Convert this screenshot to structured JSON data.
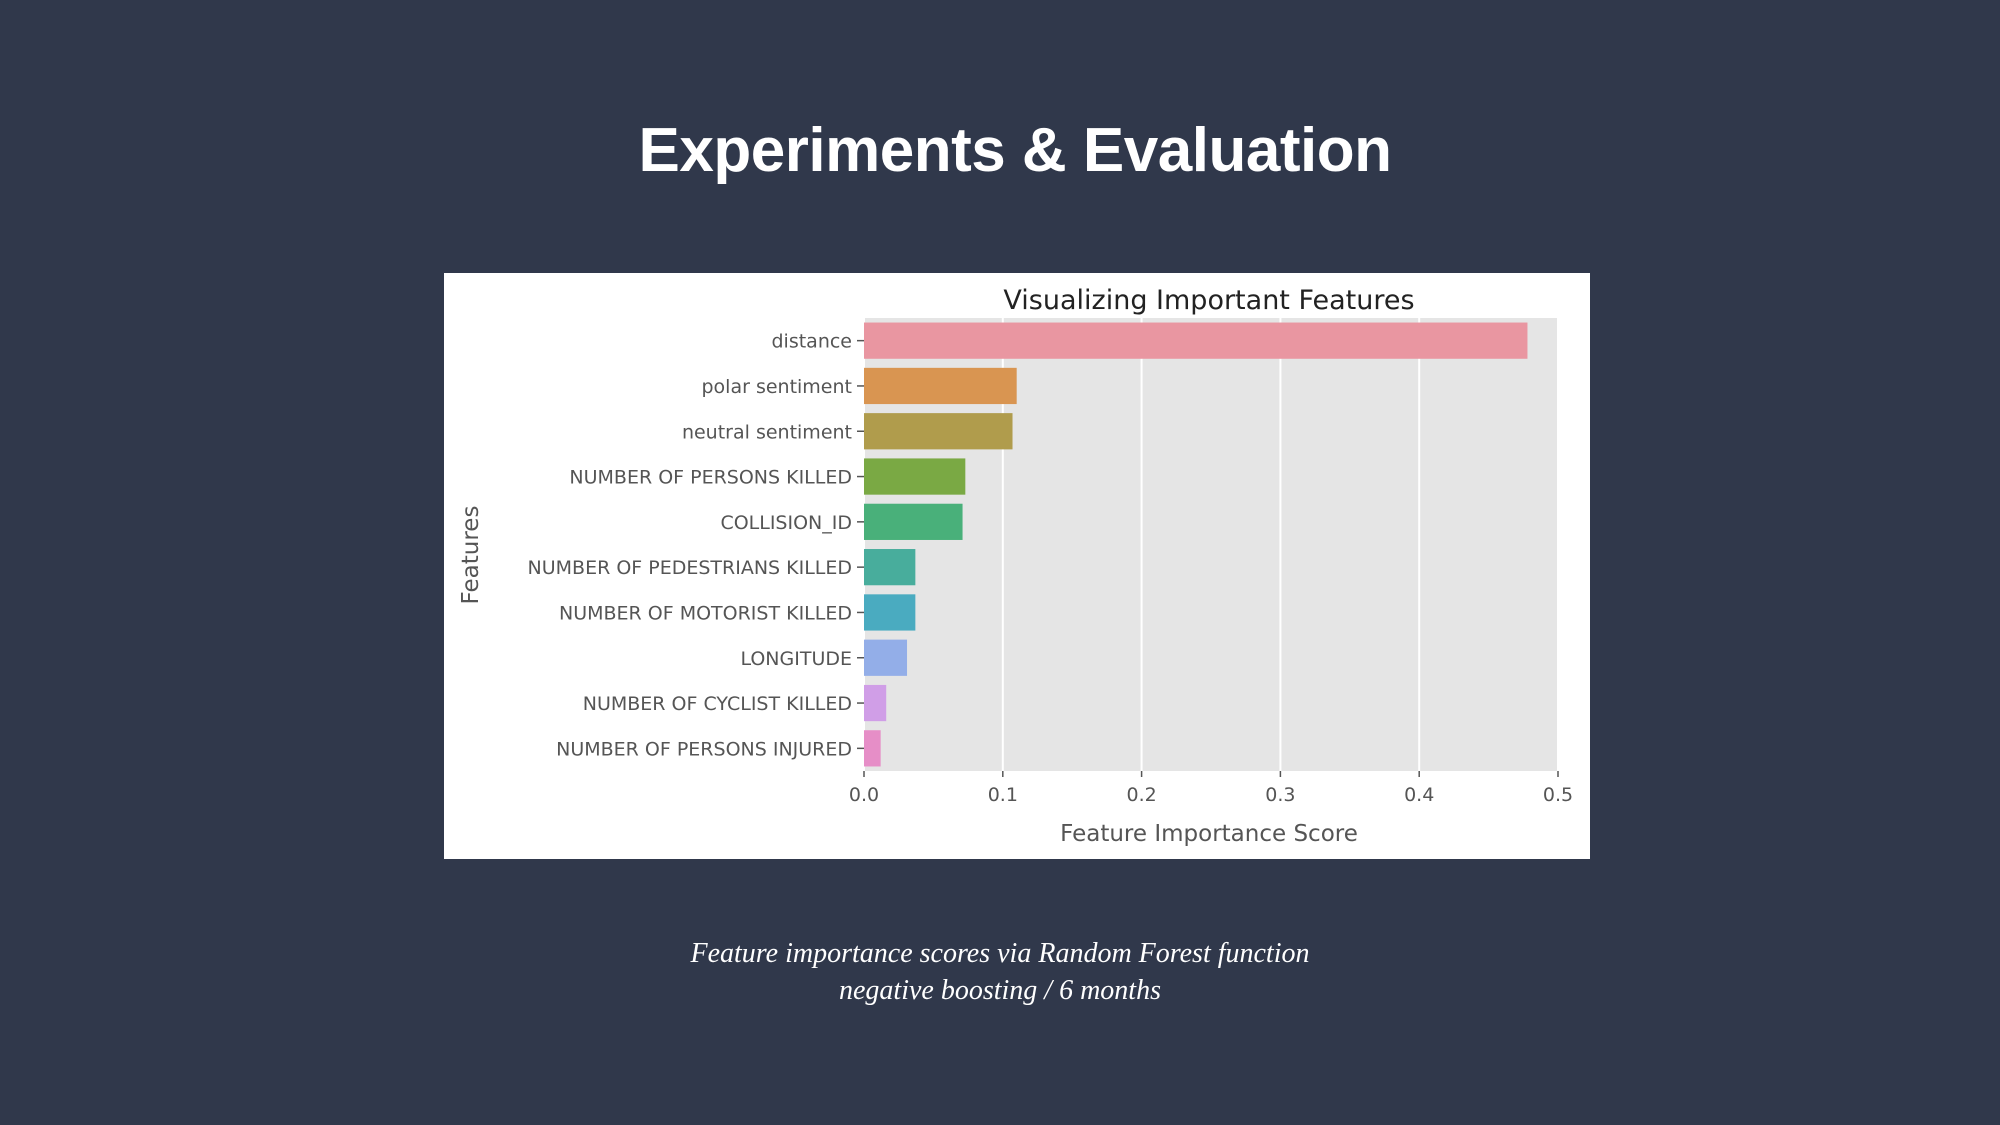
{
  "slide": {
    "title": "Experiments & Evaluation",
    "caption_line1": "Feature importance scores via Random Forest function",
    "caption_line2": "negative boosting / 6 months"
  },
  "chart_data": {
    "type": "bar",
    "orientation": "horizontal",
    "title": "Visualizing Important Features",
    "xlabel": "Feature Importance Score",
    "ylabel": "Features",
    "xlim": [
      0,
      0.5
    ],
    "xticks": [
      "0.0",
      "0.1",
      "0.2",
      "0.3",
      "0.4",
      "0.5"
    ],
    "grid": true,
    "categories": [
      "distance",
      "polar sentiment",
      "neutral sentiment",
      "NUMBER OF PERSONS KILLED",
      "COLLISION_ID",
      "NUMBER OF PEDESTRIANS KILLED",
      "NUMBER OF MOTORIST KILLED",
      "LONGITUDE",
      "NUMBER OF CYCLIST KILLED",
      "NUMBER OF PERSONS INJURED"
    ],
    "values": [
      0.478,
      0.11,
      0.107,
      0.073,
      0.071,
      0.037,
      0.037,
      0.031,
      0.016,
      0.012
    ],
    "colors": [
      "#e996a1",
      "#d99551",
      "#b09c4c",
      "#7aa944",
      "#49b07a",
      "#48ad9c",
      "#4aabc0",
      "#93aee8",
      "#d09ee7",
      "#e68ec7"
    ],
    "plot_bg": "#e5e5e5"
  }
}
